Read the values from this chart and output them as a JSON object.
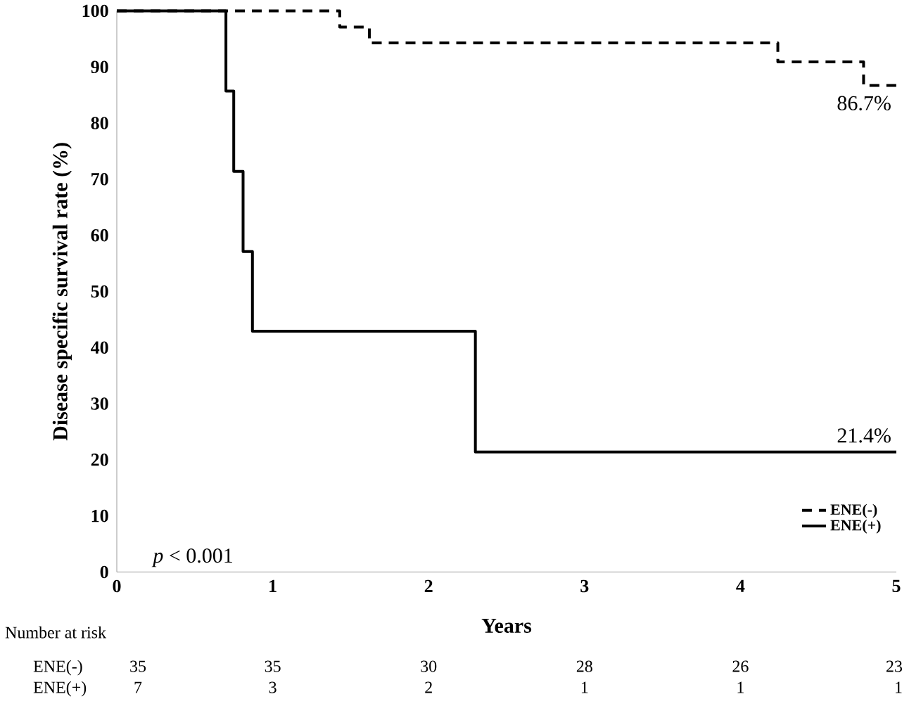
{
  "chart_data": {
    "type": "step",
    "xlabel": "Years",
    "ylabel": "Disease specific survival rate (%)",
    "xlim": [
      0,
      5
    ],
    "xticks": [
      0,
      1,
      2,
      3,
      4,
      5
    ],
    "ylim": [
      0,
      100
    ],
    "yticks": [
      0,
      10,
      20,
      30,
      40,
      50,
      60,
      70,
      80,
      90,
      100
    ],
    "legend": "bottom right",
    "grid": false,
    "series": [
      {
        "name": "ENE(-)",
        "color": "#000000",
        "line_style": "dashed",
        "x": [
          0,
          1.43,
          1.62,
          4.24,
          4.79,
          5
        ],
        "values": [
          100,
          97.1,
          94.3,
          90.9,
          86.7,
          86.7
        ]
      },
      {
        "name": "ENE(+)",
        "color": "#000000",
        "line_style": "solid",
        "x": [
          0,
          0.7,
          0.75,
          0.81,
          0.87,
          2.3,
          5
        ],
        "values": [
          100,
          85.7,
          71.4,
          57.1,
          42.9,
          21.4,
          21.4
        ]
      }
    ],
    "annotations": [
      "*p* < 0.001",
      {
        "text": "86.7%",
        "x": 5,
        "y": 86.7
      },
      {
        "text": "21.4%",
        "x": 5,
        "y": 21.4
      },
      "Number at risk",
      "ENE(-)",
      "35",
      "35",
      "30",
      "28",
      "26",
      "23",
      "ENE(+)",
      "7",
      "3",
      "2",
      "1",
      "1",
      "1"
    ]
  }
}
